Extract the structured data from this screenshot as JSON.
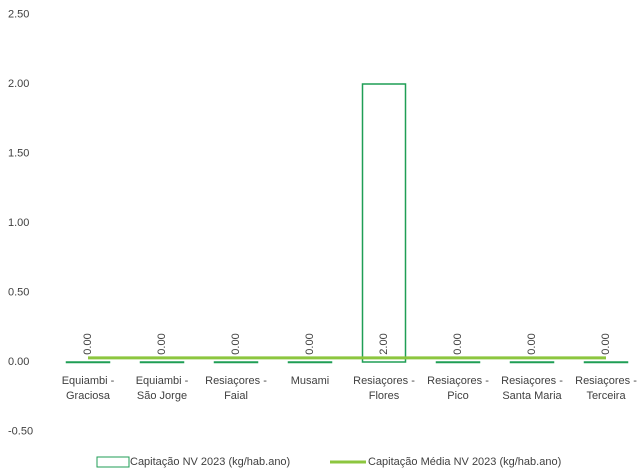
{
  "chart_data": {
    "type": "bar",
    "categories": [
      "Equiambi -\nGraciosa",
      "Equiambi -\nSão Jorge",
      "Resiaçores -\nFaial",
      "Musami",
      "Resiaçores -\nFlores",
      "Resiaçores -\nPico",
      "Resiaçores -\nSanta Maria",
      "Resiaçores -\nTerceira"
    ],
    "series": [
      {
        "name": "Capitação NV 2023 (kg/hab.ano)",
        "type": "bar",
        "color": "#1f9e55",
        "values": [
          0,
          0,
          0,
          0,
          2,
          0,
          0,
          0
        ],
        "value_labels": [
          "0.00",
          "0.00",
          "0.00",
          "0.00",
          "2.00",
          "0.00",
          "0.00",
          "0.00"
        ]
      },
      {
        "name": "Capitação Média NV 2023 (kg/hab.ano)",
        "type": "line",
        "color": "#8cc63f",
        "values": [
          0.03,
          0.03,
          0.03,
          0.03,
          0.03,
          0.03,
          0.03,
          0.03
        ]
      }
    ],
    "ylim": [
      -0.5,
      2.5
    ],
    "yticks": [
      {
        "value": -0.5,
        "label": "-0.50"
      },
      {
        "value": 0,
        "label": "0.00"
      },
      {
        "value": 0.5,
        "label": "0.50"
      },
      {
        "value": 1,
        "label": "1.00"
      },
      {
        "value": 1.5,
        "label": "1.50"
      },
      {
        "value": 2,
        "label": "2.00"
      },
      {
        "value": 2.5,
        "label": "2.50"
      }
    ],
    "legend": "bottom"
  }
}
